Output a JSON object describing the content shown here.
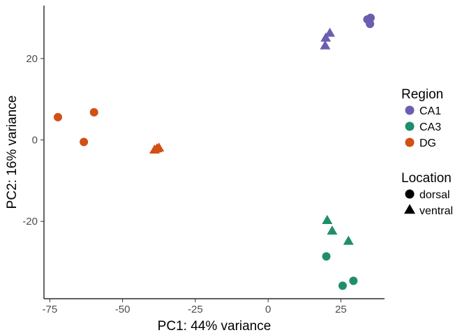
{
  "chart_data": {
    "type": "scatter",
    "xlabel": "PC1: 44% variance",
    "ylabel": "PC2: 16% variance",
    "xlim": [
      -77,
      40
    ],
    "ylim": [
      -39,
      33
    ],
    "xticks": [
      -75,
      -50,
      -25,
      0,
      25
    ],
    "yticks": [
      -20,
      0,
      20
    ],
    "xtick_labels": [
      "-75",
      "-50",
      "-25",
      "0",
      "25"
    ],
    "ytick_labels": [
      "-20",
      "0",
      "20"
    ],
    "grid": false,
    "legend_position": "right",
    "legends": [
      {
        "title": "Region",
        "kind": "color",
        "items": [
          {
            "label": "CA1",
            "color": "#6a5fae"
          },
          {
            "label": "CA3",
            "color": "#1f8f6b"
          },
          {
            "label": "DG",
            "color": "#d24f15"
          }
        ]
      },
      {
        "title": "Location",
        "kind": "shape",
        "items": [
          {
            "label": "dorsal",
            "shape": "circle"
          },
          {
            "label": "ventral",
            "shape": "triangle"
          }
        ]
      }
    ],
    "points": [
      {
        "x": 34.1,
        "y": 29.6,
        "region": "CA1",
        "location": "dorsal"
      },
      {
        "x": 35.2,
        "y": 30.0,
        "region": "CA1",
        "location": "dorsal"
      },
      {
        "x": 35.0,
        "y": 28.5,
        "region": "CA1",
        "location": "dorsal"
      },
      {
        "x": 21.2,
        "y": 26.2,
        "region": "CA1",
        "location": "ventral"
      },
      {
        "x": 19.8,
        "y": 25.0,
        "region": "CA1",
        "location": "ventral"
      },
      {
        "x": 19.6,
        "y": 23.1,
        "region": "CA1",
        "location": "ventral"
      },
      {
        "x": -72.2,
        "y": 5.6,
        "region": "DG",
        "location": "dorsal"
      },
      {
        "x": -59.8,
        "y": 6.8,
        "region": "DG",
        "location": "dorsal"
      },
      {
        "x": -63.3,
        "y": -0.5,
        "region": "DG",
        "location": "dorsal"
      },
      {
        "x": -38.2,
        "y": -2.2,
        "region": "DG",
        "location": "ventral"
      },
      {
        "x": -37.5,
        "y": -2.0,
        "region": "DG",
        "location": "ventral"
      },
      {
        "x": -39.0,
        "y": -2.5,
        "region": "DG",
        "location": "ventral"
      },
      {
        "x": 20.3,
        "y": -19.8,
        "region": "CA3",
        "location": "ventral"
      },
      {
        "x": 22.0,
        "y": -22.4,
        "region": "CA3",
        "location": "ventral"
      },
      {
        "x": 27.6,
        "y": -24.9,
        "region": "CA3",
        "location": "ventral"
      },
      {
        "x": 20.0,
        "y": -28.6,
        "region": "CA3",
        "location": "dorsal"
      },
      {
        "x": 25.6,
        "y": -35.8,
        "region": "CA3",
        "location": "dorsal"
      },
      {
        "x": 29.3,
        "y": -34.6,
        "region": "CA3",
        "location": "dorsal"
      }
    ]
  }
}
